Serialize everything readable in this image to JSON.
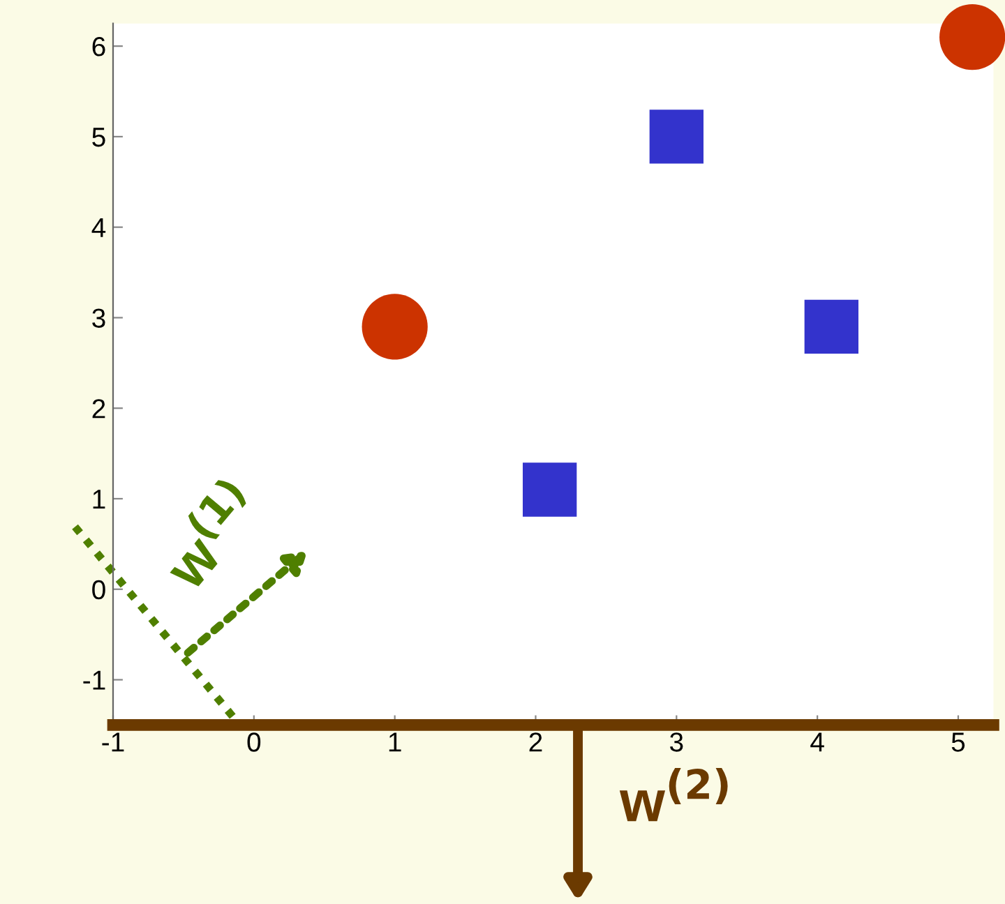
{
  "chart_data": {
    "type": "scatter",
    "xlim": [
      -1.0,
      5.25
    ],
    "ylim": [
      -1.5,
      6.25
    ],
    "xticks": [
      -1,
      0,
      1,
      2,
      3,
      4,
      5
    ],
    "yticks": [
      -1,
      0,
      1,
      2,
      3,
      4,
      5,
      6
    ],
    "grid": false,
    "legend": false,
    "series": [
      {
        "color": "#cc3300",
        "marker": "circle",
        "x": [
          1.0,
          5.1
        ],
        "values": [
          2.9,
          6.1
        ]
      },
      {
        "color": "#3333cc",
        "marker": "square",
        "x": [
          3.0,
          4.1,
          2.1
        ],
        "values": [
          5.0,
          2.9,
          1.1
        ]
      }
    ],
    "annotations": [
      "w$^{(1)}$",
      "w$^{(2)}$"
    ]
  }
}
